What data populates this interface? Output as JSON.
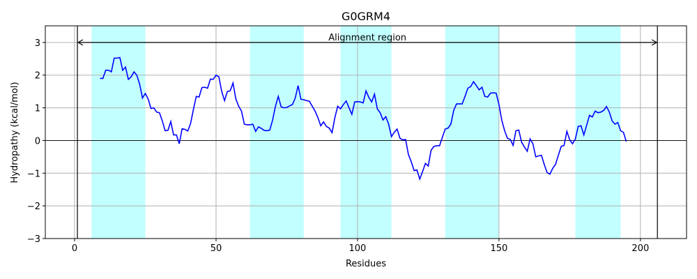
{
  "chart_data": {
    "type": "line",
    "title": "G0GRM4",
    "x_label": "Residues",
    "y_label": "Hydropathy (kcal/mol)",
    "xlim": [
      -10.35,
      216.3
    ],
    "ylim": [
      -3,
      3.51
    ],
    "xticks": [
      0,
      50,
      100,
      150,
      200
    ],
    "yticks": [
      {
        "value": -3,
        "label": "−3"
      },
      {
        "value": -2,
        "label": "−2"
      },
      {
        "value": -1,
        "label": "−1"
      },
      0,
      1,
      2,
      3
    ],
    "grid": true,
    "grid_color": "#b0b0b0",
    "region_color": "#c2ffff",
    "hline": 0,
    "vlines": [
      1,
      206
    ],
    "regions": [
      [
        6,
        25
      ],
      [
        62,
        81
      ],
      [
        94,
        112
      ],
      [
        131,
        150
      ],
      [
        177,
        193
      ]
    ],
    "annotation": {
      "text": "Alignment region",
      "y": 3,
      "x_start": 1,
      "x_end": 206
    },
    "x": [
      9,
      10,
      11,
      12,
      13,
      14,
      15,
      16,
      17,
      18,
      19,
      20,
      21,
      22,
      23,
      24,
      25,
      26,
      27,
      28,
      29,
      30,
      31,
      32,
      33,
      34,
      35,
      36,
      37,
      38,
      39,
      40,
      41,
      42,
      43,
      44,
      45,
      46,
      47,
      48,
      49,
      50,
      51,
      52,
      53,
      54,
      55,
      56,
      57,
      58,
      59,
      60,
      61,
      62,
      63,
      64,
      65,
      66,
      67,
      68,
      69,
      70,
      71,
      72,
      73,
      74,
      75,
      76,
      77,
      78,
      79,
      80,
      81,
      82,
      83,
      84,
      85,
      86,
      87,
      88,
      89,
      90,
      91,
      92,
      93,
      94,
      95,
      96,
      97,
      98,
      99,
      100,
      101,
      102,
      103,
      104,
      105,
      106,
      107,
      108,
      109,
      110,
      111,
      112,
      113,
      114,
      115,
      116,
      117,
      118,
      119,
      120,
      121,
      122,
      123,
      124,
      125,
      126,
      127,
      128,
      129,
      130,
      131,
      132,
      133,
      134,
      135,
      136,
      137,
      138,
      139,
      140,
      141,
      142,
      143,
      144,
      145,
      146,
      147,
      148,
      149,
      150,
      151,
      152,
      153,
      154,
      155,
      156,
      157,
      158,
      159,
      160,
      161,
      162,
      163,
      164,
      165,
      166,
      167,
      168,
      169,
      170,
      171,
      172,
      173,
      174,
      175,
      176,
      177,
      178,
      179,
      180,
      181,
      182,
      183,
      184,
      185,
      186,
      187,
      188,
      189,
      190,
      191,
      192,
      193,
      194,
      195
    ],
    "series": [
      {
        "color": "#0000ff",
        "values": [
          1.9,
          1.9,
          2.15,
          2.15,
          2.1,
          2.52,
          2.52,
          2.54,
          2.15,
          2.25,
          1.87,
          1.95,
          2.1,
          2.0,
          1.72,
          1.3,
          1.44,
          1.27,
          0.98,
          1.0,
          0.87,
          0.85,
          0.6,
          0.3,
          0.31,
          0.58,
          0.17,
          0.17,
          -0.1,
          0.36,
          0.34,
          0.29,
          0.52,
          0.95,
          1.35,
          1.33,
          1.62,
          1.63,
          1.6,
          1.88,
          1.87,
          2.0,
          1.95,
          1.5,
          1.22,
          1.5,
          1.52,
          1.76,
          1.27,
          1.05,
          0.9,
          0.5,
          0.48,
          0.48,
          0.5,
          0.28,
          0.42,
          0.37,
          0.31,
          0.3,
          0.32,
          0.63,
          1.05,
          1.35,
          1.03,
          1.0,
          1.01,
          1.06,
          1.1,
          1.3,
          1.68,
          1.26,
          1.25,
          1.22,
          1.2,
          1.05,
          0.9,
          0.7,
          0.45,
          0.57,
          0.43,
          0.38,
          0.24,
          0.7,
          1.05,
          0.97,
          1.1,
          1.21,
          1.0,
          0.8,
          1.18,
          1.19,
          1.18,
          1.15,
          1.52,
          1.32,
          1.18,
          1.42,
          0.97,
          0.85,
          0.63,
          0.73,
          0.5,
          0.12,
          0.25,
          0.35,
          0.07,
          0.02,
          0.03,
          -0.43,
          -0.65,
          -0.92,
          -0.9,
          -1.18,
          -0.95,
          -0.7,
          -0.78,
          -0.3,
          -0.18,
          -0.16,
          -0.16,
          0.1,
          0.35,
          0.38,
          0.5,
          0.92,
          1.12,
          1.12,
          1.12,
          1.35,
          1.6,
          1.65,
          1.8,
          1.68,
          1.55,
          1.63,
          1.35,
          1.33,
          1.45,
          1.46,
          1.45,
          1.1,
          0.62,
          0.3,
          0.07,
          0.03,
          -0.15,
          0.3,
          0.32,
          -0.05,
          -0.2,
          -0.33,
          0.05,
          -0.1,
          -0.5,
          -0.47,
          -0.45,
          -0.73,
          -0.98,
          -1.03,
          -0.85,
          -0.73,
          -0.45,
          -0.18,
          -0.15,
          0.28,
          0.02,
          -0.1,
          0.05,
          0.43,
          0.45,
          0.17,
          0.47,
          0.77,
          0.72,
          0.9,
          0.85,
          0.87,
          0.92,
          1.04,
          0.87,
          0.6,
          0.5,
          0.55,
          0.3,
          0.25,
          -0.03
        ]
      }
    ]
  }
}
